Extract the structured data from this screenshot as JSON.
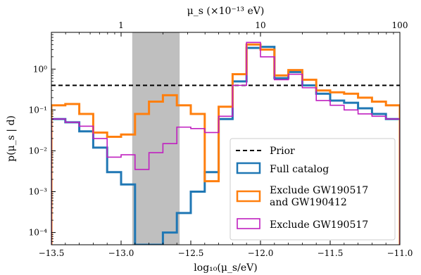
{
  "chart_data": {
    "type": "line",
    "drawstyle": "steps",
    "xlabel": "log₁₀(μ_s/eV)",
    "ylabel": "p(μ_s | d)",
    "top_xlabel": "μ_s (×10⁻¹³ eV)",
    "xlim": [
      -13.5,
      -11.0
    ],
    "ylim_log10": [
      -4.3,
      0.9
    ],
    "yscale": "log",
    "x_ticks": [
      "−13.5",
      "−13.0",
      "−12.5",
      "−12.0",
      "−11.5",
      "−11.0"
    ],
    "y_ticks": [
      "10⁻⁴",
      "10⁻³",
      "10⁻²",
      "10⁻¹",
      "10⁰"
    ],
    "top_ticks": [
      "1",
      "10",
      "100"
    ],
    "shaded_region": {
      "x_range": [
        -12.92,
        -12.58
      ],
      "color": "#bfbfbf"
    },
    "prior": {
      "name": "Prior",
      "value": 0.4,
      "color": "#000000",
      "style": "dashed"
    },
    "bin_edges": [
      -13.5,
      -13.4,
      -13.3,
      -13.2,
      -13.1,
      -13.0,
      -12.9,
      -12.8,
      -12.7,
      -12.6,
      -12.5,
      -12.4,
      -12.3,
      -12.2,
      -12.1,
      -12.0,
      -11.9,
      -11.8,
      -11.7,
      -11.6,
      -11.5,
      -11.4,
      -11.3,
      -11.2,
      -11.1,
      -11.0
    ],
    "series": [
      {
        "name": "Full catalog",
        "color": "#1f77b4",
        "values": [
          0.06,
          0.05,
          0.03,
          0.012,
          0.003,
          0.0015,
          3e-05,
          5e-05,
          0.0001,
          0.0003,
          0.001,
          0.003,
          0.06,
          0.5,
          3.3,
          3.5,
          0.6,
          0.85,
          0.4,
          0.25,
          0.17,
          0.15,
          0.11,
          0.08,
          0.06
        ]
      },
      {
        "name": "Exclude GW190517 and GW190412",
        "color": "#ff7f0e",
        "values": [
          0.13,
          0.14,
          0.08,
          0.028,
          0.022,
          0.025,
          0.08,
          0.16,
          0.23,
          0.13,
          0.08,
          0.0018,
          0.12,
          0.75,
          4.0,
          3.0,
          0.7,
          0.95,
          0.55,
          0.3,
          0.27,
          0.25,
          0.2,
          0.16,
          0.13
        ]
      },
      {
        "name": "Exclude GW190517",
        "color": "#c020c0",
        "values": [
          0.06,
          0.05,
          0.04,
          0.02,
          0.007,
          0.008,
          0.0035,
          0.009,
          0.015,
          0.038,
          0.035,
          0.028,
          0.07,
          0.4,
          4.5,
          2.0,
          0.55,
          0.75,
          0.35,
          0.17,
          0.13,
          0.1,
          0.08,
          0.07,
          0.06
        ]
      }
    ],
    "legend": {
      "placement": "lower-right",
      "entries": [
        "Prior",
        "Full catalog",
        "Exclude GW190517 and GW190412",
        "Exclude GW190517"
      ]
    }
  }
}
